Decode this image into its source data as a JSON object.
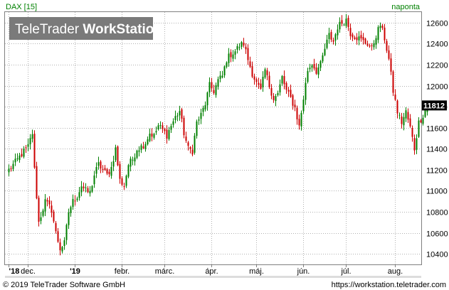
{
  "header": {
    "instrument": "DAX [15]",
    "period": "naponta"
  },
  "watermark": {
    "brand_plain": "TeleTrader ",
    "brand_bold": "WorkStation"
  },
  "footer": {
    "copyright": "© 2019 TeleTrader Software GmbH",
    "url": "https://workstation.teletrader.com"
  },
  "colors": {
    "up": "#008000",
    "down": "#cc0000",
    "grid": "#b0b0b0",
    "frame": "#808080",
    "top_text": "#008000",
    "last_label_bg": "#000000",
    "watermark_bg": "#7a7a7a"
  },
  "chart_data": {
    "type": "candlestick",
    "yaxis_side": "right",
    "ylim": [
      10300,
      12700
    ],
    "y_ticks": [
      10400,
      10600,
      10800,
      11000,
      11200,
      11400,
      11600,
      11800,
      12000,
      12200,
      12400,
      12600
    ],
    "y_tick_labels": [
      "10400",
      "10600",
      "10800",
      "11000",
      "11200",
      "11400",
      "11600",
      "11800",
      "12000",
      "12200",
      "12400",
      "12600"
    ],
    "x_ticks": [
      {
        "label": "'18",
        "index": 0,
        "bold": true
      },
      {
        "label": "dec.",
        "index": 9,
        "bold": false
      },
      {
        "label": "'19",
        "index": 31,
        "bold": true
      },
      {
        "label": "febr.",
        "index": 53,
        "bold": false
      },
      {
        "label": "márc.",
        "index": 73,
        "bold": false
      },
      {
        "label": "ápr.",
        "index": 95,
        "bold": false
      },
      {
        "label": "máj.",
        "index": 116,
        "bold": false
      },
      {
        "label": "jún.",
        "index": 138,
        "bold": false
      },
      {
        "label": "júl.",
        "index": 158,
        "bold": false
      },
      {
        "label": "aug.",
        "index": 181,
        "bold": false
      }
    ],
    "last_value": 11812,
    "last_value_label": "11812",
    "grid": true,
    "anchors": [
      [
        0,
        11200
      ],
      [
        3,
        11270
      ],
      [
        6,
        11350
      ],
      [
        9,
        11420
      ],
      [
        11,
        11550
      ],
      [
        12,
        11200
      ],
      [
        14,
        10700
      ],
      [
        17,
        10900
      ],
      [
        20,
        10820
      ],
      [
        22,
        10600
      ],
      [
        24,
        10450
      ],
      [
        26,
        10500
      ],
      [
        28,
        10800
      ],
      [
        30,
        10900
      ],
      [
        32,
        10950
      ],
      [
        34,
        11050
      ],
      [
        36,
        11000
      ],
      [
        38,
        10980
      ],
      [
        40,
        11150
      ],
      [
        42,
        11250
      ],
      [
        44,
        11200
      ],
      [
        46,
        11150
      ],
      [
        48,
        11220
      ],
      [
        50,
        11400
      ],
      [
        52,
        11100
      ],
      [
        54,
        11050
      ],
      [
        56,
        11250
      ],
      [
        58,
        11300
      ],
      [
        60,
        11400
      ],
      [
        62,
        11420
      ],
      [
        64,
        11460
      ],
      [
        66,
        11550
      ],
      [
        68,
        11520
      ],
      [
        70,
        11620
      ],
      [
        72,
        11580
      ],
      [
        74,
        11530
      ],
      [
        76,
        11620
      ],
      [
        78,
        11700
      ],
      [
        80,
        11760
      ],
      [
        82,
        11550
      ],
      [
        84,
        11400
      ],
      [
        86,
        11380
      ],
      [
        88,
        11650
      ],
      [
        90,
        11720
      ],
      [
        92,
        11830
      ],
      [
        94,
        12000
      ],
      [
        96,
        11950
      ],
      [
        98,
        12050
      ],
      [
        100,
        12090
      ],
      [
        102,
        12250
      ],
      [
        104,
        12300
      ],
      [
        106,
        12330
      ],
      [
        108,
        12380
      ],
      [
        110,
        12400
      ],
      [
        112,
        12250
      ],
      [
        114,
        12120
      ],
      [
        116,
        12020
      ],
      [
        118,
        11950
      ],
      [
        120,
        12150
      ],
      [
        122,
        12000
      ],
      [
        124,
        11880
      ],
      [
        126,
        11920
      ],
      [
        128,
        12080
      ],
      [
        130,
        11950
      ],
      [
        132,
        11880
      ],
      [
        134,
        11790
      ],
      [
        136,
        11610
      ],
      [
        138,
        11880
      ],
      [
        140,
        12150
      ],
      [
        142,
        12210
      ],
      [
        144,
        12140
      ],
      [
        146,
        12200
      ],
      [
        148,
        12350
      ],
      [
        150,
        12480
      ],
      [
        152,
        12420
      ],
      [
        154,
        12560
      ],
      [
        156,
        12600
      ],
      [
        158,
        12630
      ],
      [
        160,
        12500
      ],
      [
        162,
        12470
      ],
      [
        164,
        12450
      ],
      [
        166,
        12420
      ],
      [
        168,
        12400
      ],
      [
        170,
        12350
      ],
      [
        172,
        12480
      ],
      [
        174,
        12580
      ],
      [
        176,
        12450
      ],
      [
        178,
        12250
      ],
      [
        180,
        11950
      ],
      [
        182,
        11750
      ],
      [
        184,
        11650
      ],
      [
        186,
        11750
      ],
      [
        188,
        11600
      ],
      [
        190,
        11400
      ],
      [
        192,
        11650
      ],
      [
        194,
        11720
      ],
      [
        196,
        11812
      ]
    ]
  }
}
